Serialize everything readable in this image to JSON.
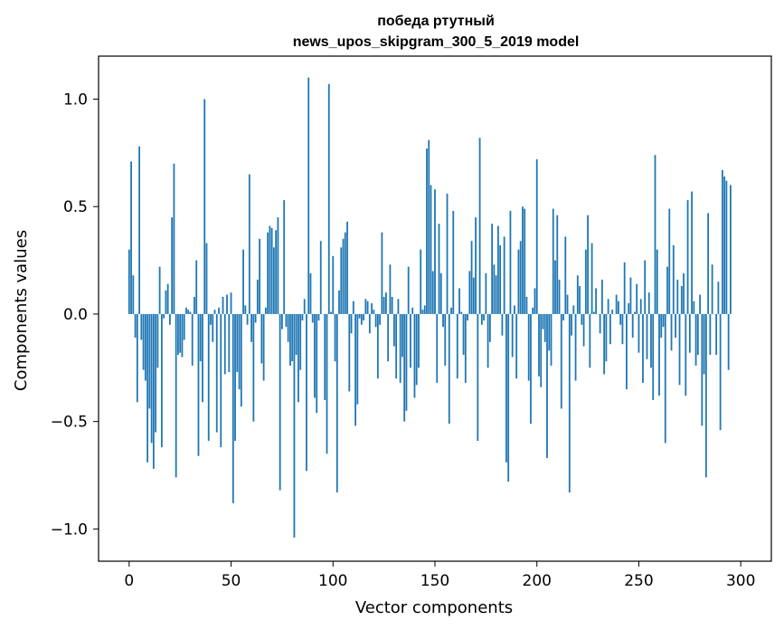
{
  "chart_data": {
    "type": "bar",
    "title_lines": [
      "победа ртутный",
      "news_upos_skipgram_300_5_2019 model"
    ],
    "xlabel": "Vector components",
    "ylabel": "Components values",
    "xlim": [
      -15,
      315
    ],
    "ylim": [
      -1.15,
      1.2
    ],
    "xticks": [
      0,
      50,
      100,
      150,
      200,
      250,
      300
    ],
    "yticks": [
      -1.0,
      -0.5,
      0.0,
      0.5,
      1.0
    ],
    "ytick_labels": [
      "−1.0",
      "−0.5",
      "0.0",
      "0.5",
      "1.0"
    ],
    "bar_color": "#1f77b4",
    "grid": false,
    "values": [
      0.3,
      0.71,
      0.18,
      -0.11,
      -0.41,
      0.78,
      -0.12,
      -0.26,
      -0.31,
      -0.69,
      -0.44,
      -0.6,
      -0.72,
      -0.55,
      -0.25,
      0.22,
      -0.62,
      -0.02,
      0.11,
      0.14,
      -0.05,
      0.45,
      0.7,
      -0.76,
      -0.19,
      -0.18,
      -0.2,
      -0.12,
      0.03,
      0.02,
      0.01,
      -0.24,
      0.08,
      0.25,
      -0.66,
      -0.22,
      -0.41,
      1.0,
      0.33,
      -0.59,
      -0.05,
      -0.13,
      0.02,
      -0.55,
      0.03,
      -0.62,
      0.08,
      -0.28,
      0.09,
      -0.27,
      0.1,
      -0.88,
      -0.59,
      -0.27,
      -0.35,
      -0.43,
      0.3,
      0.04,
      -0.05,
      0.65,
      -0.13,
      -0.5,
      -0.04,
      0.16,
      0.35,
      -0.23,
      -0.31,
      0.03,
      0.38,
      0.41,
      0.4,
      0.31,
      0.39,
      0.45,
      -0.82,
      -0.07,
      0.53,
      -0.06,
      -0.13,
      -0.24,
      -0.22,
      -1.04,
      -0.19,
      -0.41,
      -0.26,
      -0.03,
      0.07,
      -0.73,
      1.1,
      0.19,
      -0.04,
      -0.39,
      -0.46,
      -0.03,
      0.34,
      0.0,
      -0.4,
      -0.65,
      1.07,
      0.01,
      0.27,
      -0.22,
      -0.83,
      0.11,
      0.31,
      0.35,
      0.38,
      0.43,
      -0.36,
      -0.09,
      0.06,
      -0.52,
      -0.42,
      -0.02,
      -0.05,
      -0.03,
      0.07,
      0.06,
      -0.09,
      0.05,
      0.02,
      -0.06,
      -0.3,
      -0.05,
      0.38,
      0.08,
      0.1,
      -0.22,
      0.23,
      0.08,
      -0.15,
      -0.3,
      0.07,
      -0.32,
      -0.2,
      -0.5,
      -0.45,
      0.22,
      -0.25,
      0.03,
      -0.39,
      -0.33,
      -0.25,
      0.3,
      0.02,
      0.04,
      0.77,
      0.81,
      0.6,
      0.2,
      0.58,
      -0.32,
      0.42,
      0.19,
      -0.06,
      -0.24,
      0.56,
      -0.51,
      0.03,
      0.48,
      0.0,
      -0.3,
      0.12,
      0.01,
      -0.19,
      -0.32,
      -0.03,
      0.2,
      0.34,
      0.17,
      0.45,
      -0.59,
      0.82,
      -0.05,
      -0.03,
      0.19,
      -0.25,
      -0.13,
      0.42,
      0.23,
      0.18,
      0.41,
      0.32,
      -0.1,
      0.36,
      -0.69,
      -0.78,
      0.48,
      -0.2,
      0.04,
      -0.3,
      0.3,
      0.34,
      0.5,
      0.49,
      0.08,
      -0.31,
      -0.51,
      0.03,
      0.12,
      0.72,
      -0.29,
      -0.34,
      -0.07,
      -0.13,
      -0.67,
      -0.17,
      -0.24,
      0.49,
      0.25,
      0.46,
      0.16,
      -0.44,
      -0.03,
      0.36,
      0.09,
      -0.83,
      -0.1,
      0.04,
      -0.31,
      0.18,
      0.13,
      -0.05,
      -0.15,
      0.3,
      0.46,
      -0.25,
      0.33,
      0.01,
      0.12,
      0.0,
      -0.09,
      0.16,
      -0.28,
      -0.22,
      0.07,
      -0.14,
      0.02,
      0.0,
      0.09,
      0.06,
      -0.05,
      -0.14,
      0.24,
      -0.35,
      0.05,
      0.17,
      -0.11,
      0.01,
      0.14,
      -0.18,
      0.07,
      -0.32,
      0.25,
      -0.21,
      0.1,
      -0.25,
      -0.4,
      0.74,
      0.3,
      -0.38,
      -0.11,
      -0.06,
      -0.6,
      0.22,
      0.49,
      -0.17,
      0.32,
      -0.11,
      0.16,
      -0.33,
      0.13,
      0.19,
      -0.38,
      0.53,
      -0.18,
      0.57,
      0.06,
      -0.24,
      -0.19,
      0.09,
      -0.52,
      -0.28,
      -0.76,
      0.47,
      -0.19,
      0.23,
      0.0,
      -0.19,
      0.15,
      -0.54,
      0.67,
      0.64,
      0.62,
      -0.26,
      0.6
    ]
  }
}
